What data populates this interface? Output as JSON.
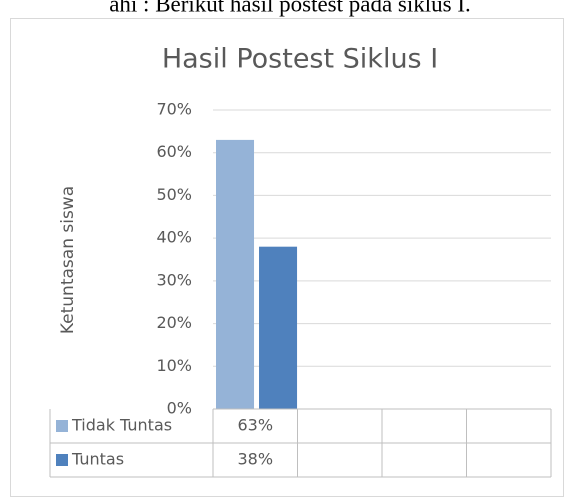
{
  "page_text": "ahi : Berikut hasil postest pada siklus I.",
  "chart_data": {
    "type": "bar",
    "title": "Hasil Postest Siklus I",
    "y_label": "Ketuntasan siswa",
    "categories": [
      null,
      null,
      null,
      null
    ],
    "series": [
      {
        "name": "Tidak Tuntas",
        "color": "#95b3d7",
        "values": [
          63,
          null,
          null,
          null
        ],
        "value_labels": [
          "63%",
          null,
          null,
          null
        ]
      },
      {
        "name": "Tuntas",
        "color": "#4f81bd",
        "values": [
          38,
          null,
          null,
          null
        ],
        "value_labels": [
          "38%",
          null,
          null,
          null
        ]
      }
    ],
    "ylim": [
      0,
      70
    ],
    "yticks": [
      {
        "value": 0,
        "label": "0%"
      },
      {
        "value": 10,
        "label": "10%"
      },
      {
        "value": 20,
        "label": "20%"
      },
      {
        "value": 30,
        "label": "30%"
      },
      {
        "value": 40,
        "label": "40%"
      },
      {
        "value": 50,
        "label": "50%"
      },
      {
        "value": 60,
        "label": "60%"
      },
      {
        "value": 70,
        "label": "70%"
      }
    ],
    "grid": true,
    "legend": "table"
  }
}
